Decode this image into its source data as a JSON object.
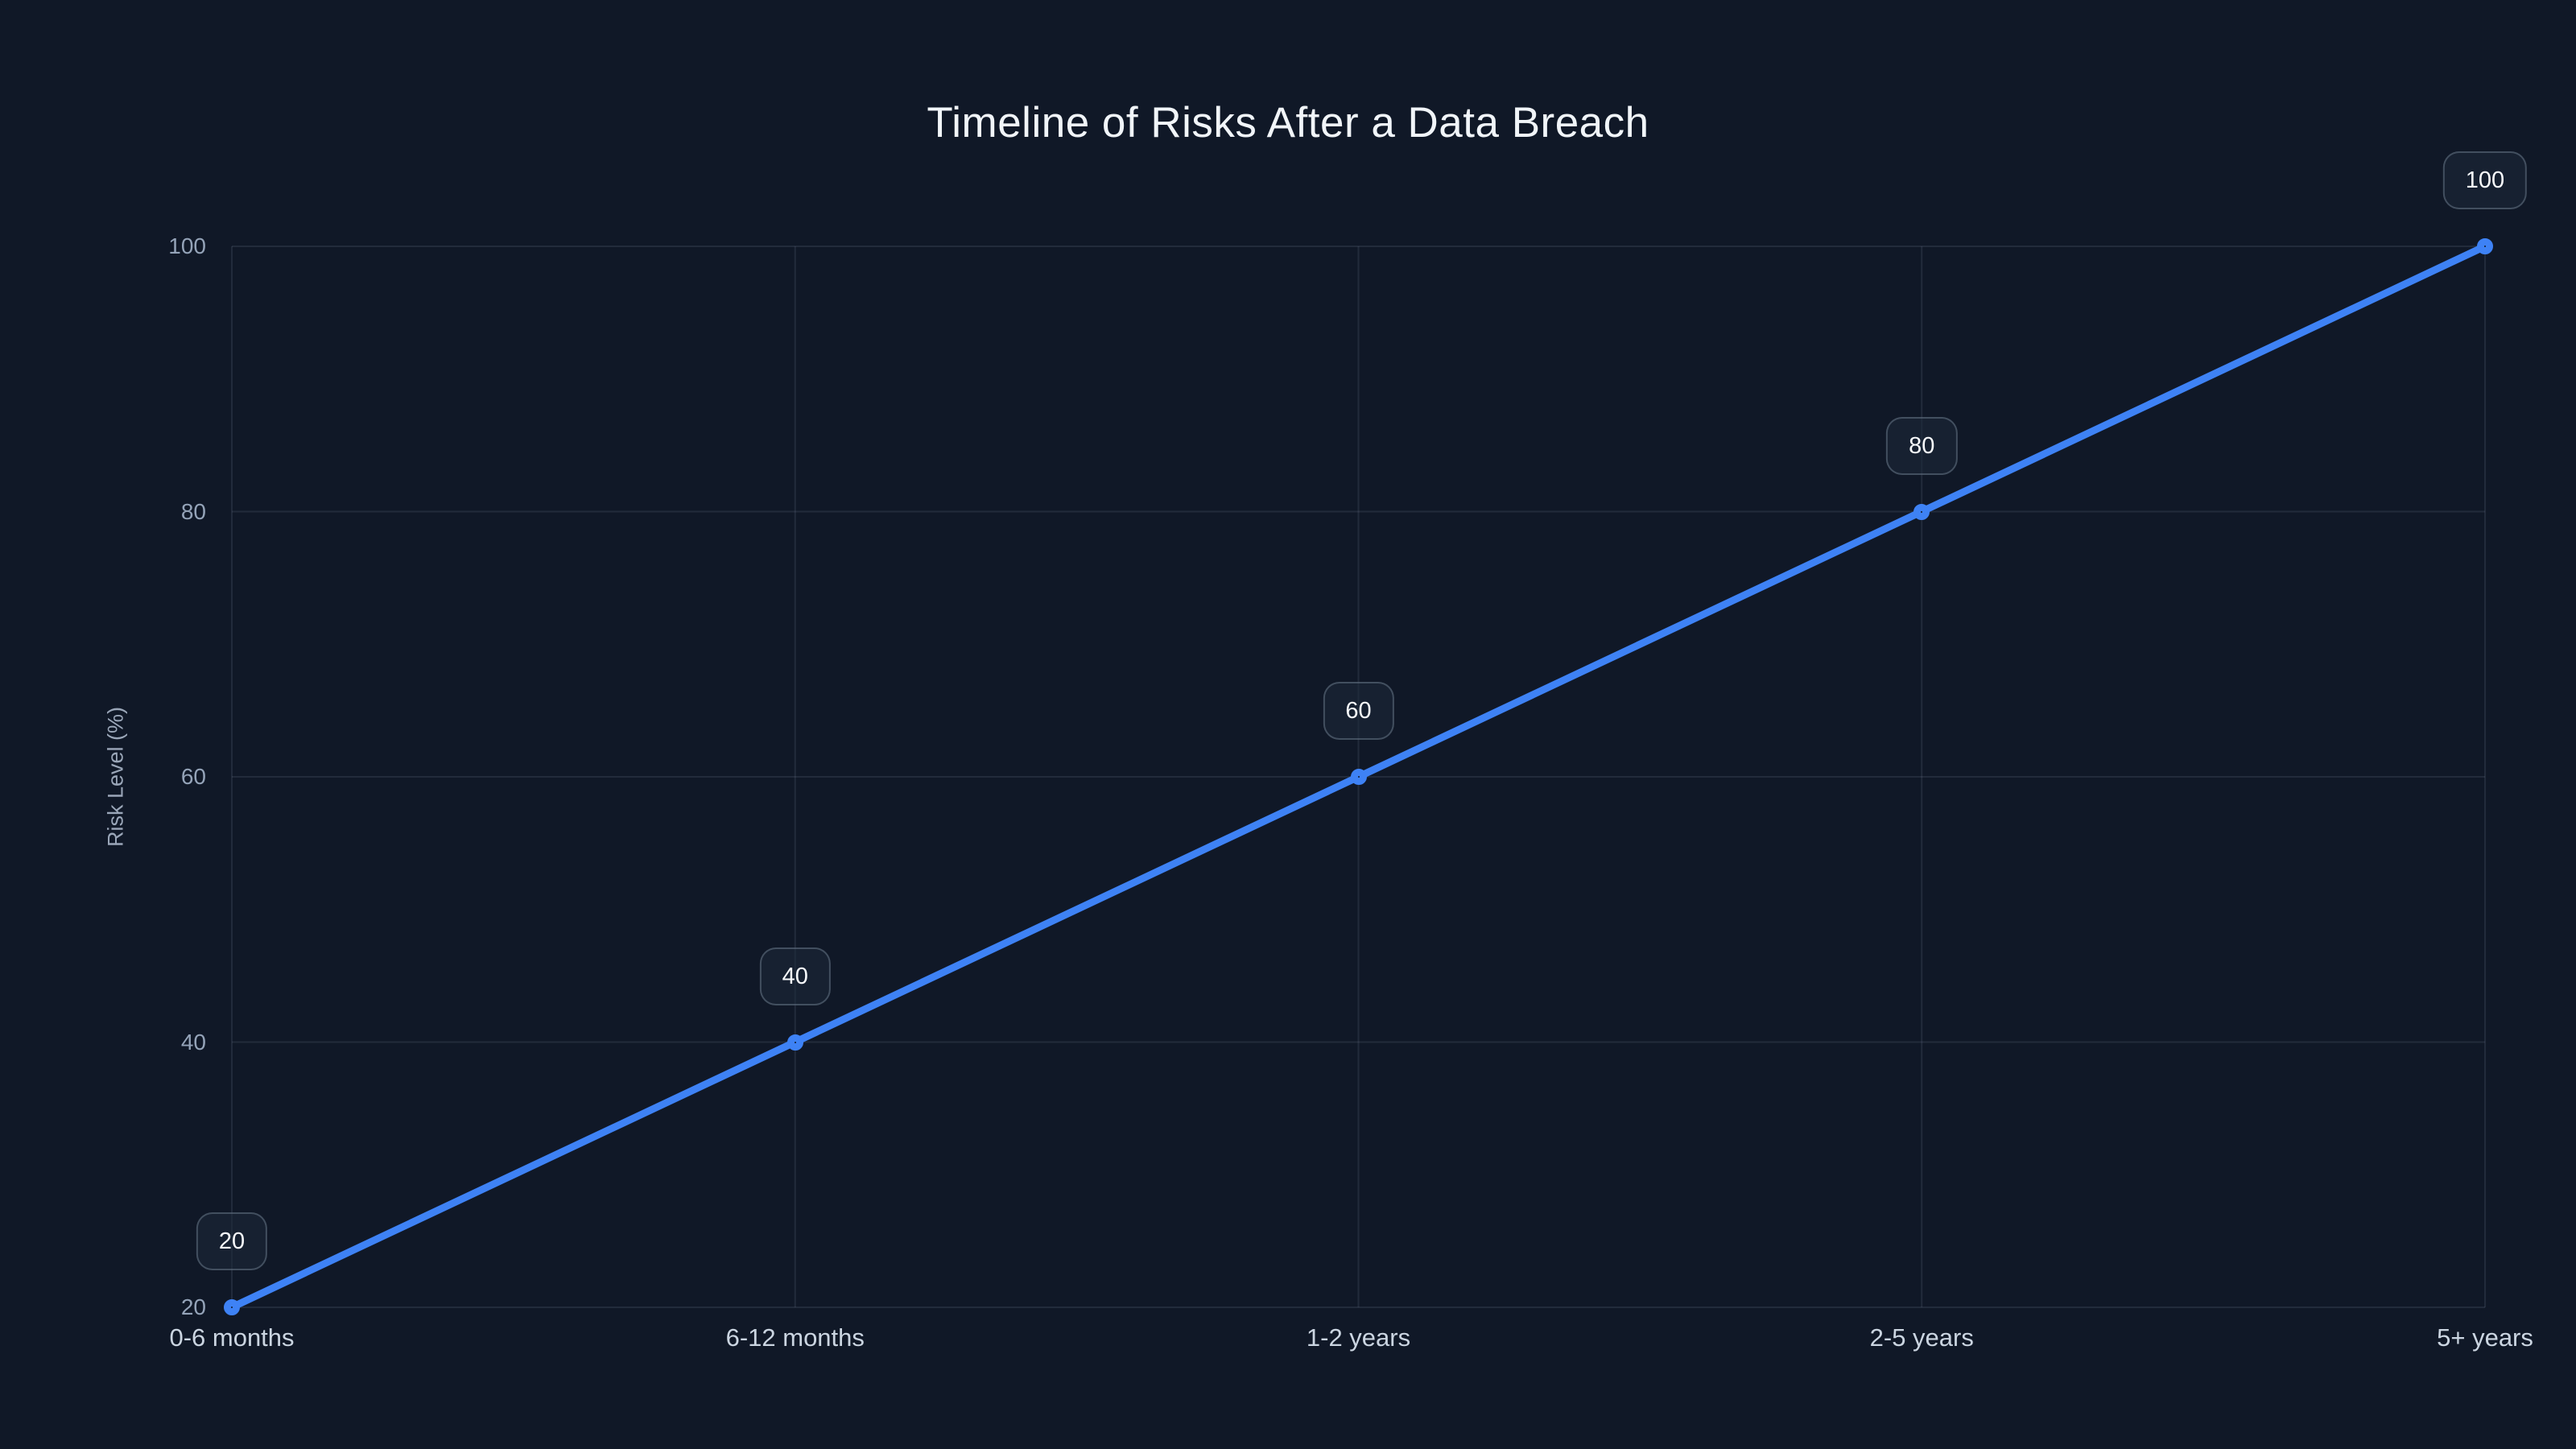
{
  "page": {
    "title": "Timeline of Risks After a Data Breach"
  },
  "chart_data": {
    "type": "line",
    "title": "Timeline of Risks After a Data Breach",
    "categories": [
      "0-6 months",
      "6-12 months",
      "1-2 years",
      "2-5 years",
      "5+ years"
    ],
    "series": [
      {
        "name": "Risk Level",
        "values": [
          20,
          40,
          60,
          80,
          100
        ]
      }
    ],
    "point_labels": [
      "20",
      "40",
      "60",
      "80",
      "100"
    ],
    "xlabel": "",
    "ylabel": "Risk Level (%)",
    "ylim": [
      20,
      100
    ],
    "yticks": [
      20,
      40,
      60,
      80,
      100
    ],
    "grid": true,
    "legend_position": "none",
    "marker_style": "open-circle",
    "colors": {
      "background": "#101827",
      "series_line": "#3E82F5",
      "marker_fill": "#101827",
      "gridline": "rgba(148,163,184,0.14)",
      "title_text": "#F1F5F9",
      "tick_label": "#94A3B8",
      "category_label": "#CBD5E1",
      "axis_title": "#9AA6B8",
      "value_label_text": "#F8FAFC",
      "value_label_bg": "rgba(30,41,59,0.55)",
      "value_label_border": "rgba(148,163,184,0.35)"
    }
  }
}
